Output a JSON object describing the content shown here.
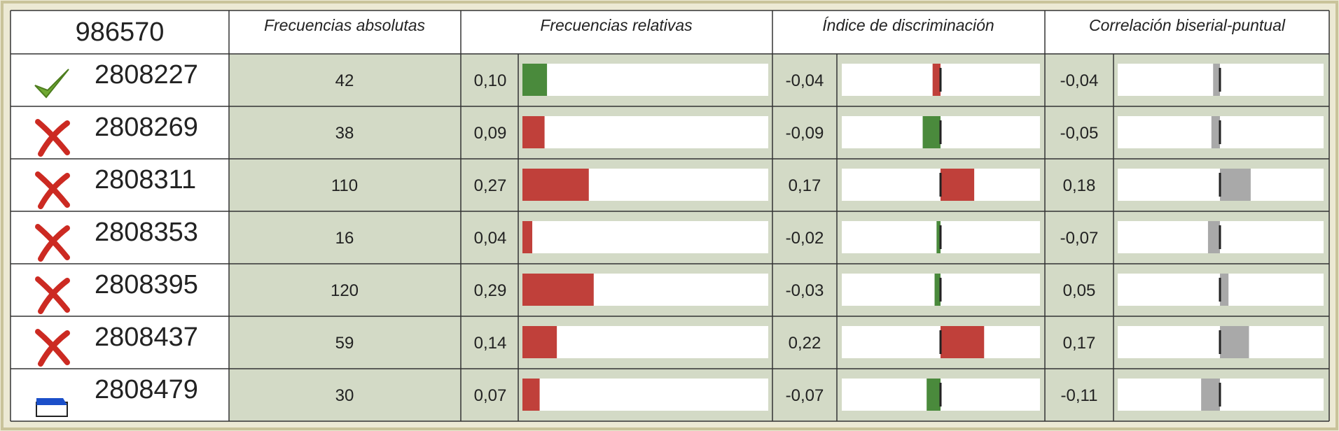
{
  "header": {
    "id": "986570",
    "columns": [
      "Frecuencias absolutas",
      "Frecuencias relativas",
      "Índice de discriminación",
      "Correlación biserial-puntual"
    ]
  },
  "corr_color": "#a9a9a9",
  "rows": [
    {
      "icon": "check",
      "id": "2808227",
      "abs": "42",
      "rel": {
        "value": 0.1,
        "label": "0,10"
      },
      "rel_color": "#4a8a3c",
      "disc": {
        "value": -0.04,
        "label": "-0,04"
      },
      "disc_color": "#c0403a",
      "corr": {
        "value": -0.04,
        "label": "-0,04"
      }
    },
    {
      "icon": "cross",
      "id": "2808269",
      "abs": "38",
      "rel": {
        "value": 0.09,
        "label": "0,09"
      },
      "rel_color": "#c0403a",
      "disc": {
        "value": -0.09,
        "label": "-0,09"
      },
      "disc_color": "#4a8a3c",
      "corr": {
        "value": -0.05,
        "label": "-0,05"
      }
    },
    {
      "icon": "cross",
      "id": "2808311",
      "abs": "110",
      "rel": {
        "value": 0.27,
        "label": "0,27"
      },
      "rel_color": "#c0403a",
      "disc": {
        "value": 0.17,
        "label": "0,17"
      },
      "disc_color": "#c0403a",
      "corr": {
        "value": 0.18,
        "label": "0,18"
      }
    },
    {
      "icon": "cross",
      "id": "2808353",
      "abs": "16",
      "rel": {
        "value": 0.04,
        "label": "0,04"
      },
      "rel_color": "#c0403a",
      "disc": {
        "value": -0.02,
        "label": "-0,02"
      },
      "disc_color": "#4a8a3c",
      "corr": {
        "value": -0.07,
        "label": "-0,07"
      }
    },
    {
      "icon": "cross",
      "id": "2808395",
      "abs": "120",
      "rel": {
        "value": 0.29,
        "label": "0,29"
      },
      "rel_color": "#c0403a",
      "disc": {
        "value": -0.03,
        "label": "-0,03"
      },
      "disc_color": "#4a8a3c",
      "corr": {
        "value": 0.05,
        "label": "0,05"
      }
    },
    {
      "icon": "cross",
      "id": "2808437",
      "abs": "59",
      "rel": {
        "value": 0.14,
        "label": "0,14"
      },
      "rel_color": "#c0403a",
      "disc": {
        "value": 0.22,
        "label": "0,22"
      },
      "disc_color": "#c0403a",
      "corr": {
        "value": 0.17,
        "label": "0,17"
      }
    },
    {
      "icon": "blank",
      "id": "2808479",
      "abs": "30",
      "rel": {
        "value": 0.07,
        "label": "0,07"
      },
      "rel_color": "#c0403a",
      "disc": {
        "value": -0.07,
        "label": "-0,07"
      },
      "disc_color": "#4a8a3c",
      "corr": {
        "value": -0.11,
        "label": "-0,11"
      }
    }
  ]
}
